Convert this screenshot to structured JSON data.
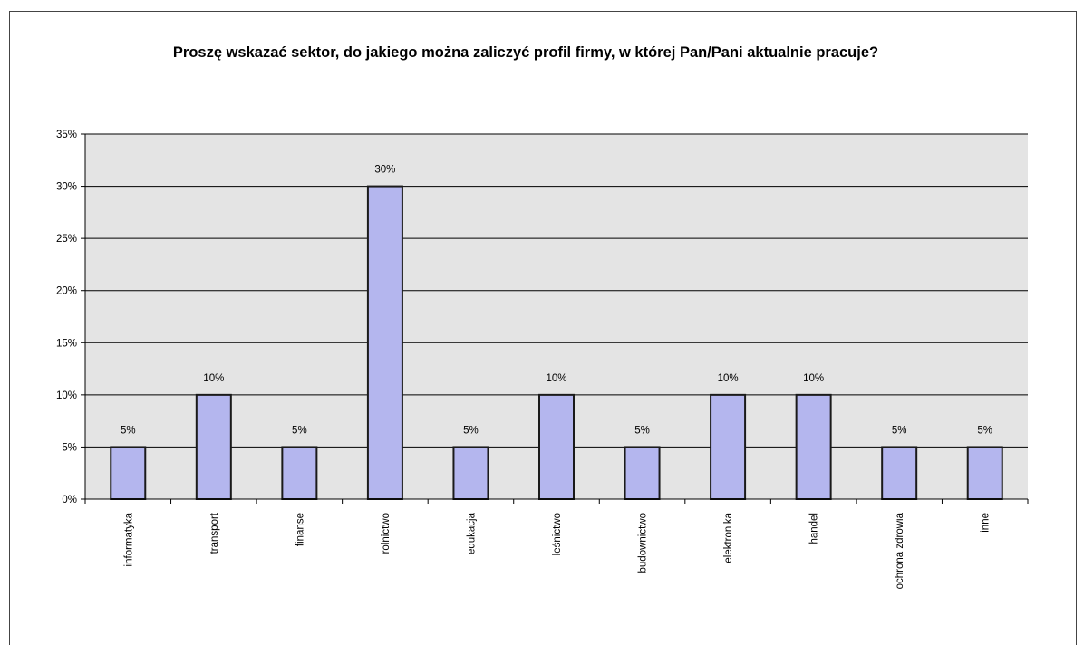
{
  "chart_data": {
    "type": "bar",
    "title": "Proszę wskazać sektor, do jakiego można zaliczyć profil firmy, w której Pan/Pani aktualnie pracuje?",
    "categories": [
      "informatyka",
      "transport",
      "finanse",
      "rolnictwo",
      "edukacja",
      "leśnictwo",
      "budownictwo",
      "elektronika",
      "handel",
      "ochrona zdrowia",
      "inne"
    ],
    "values": [
      5,
      10,
      5,
      30,
      5,
      10,
      5,
      10,
      10,
      5,
      5
    ],
    "data_labels": [
      "5%",
      "10%",
      "5%",
      "30%",
      "5%",
      "10%",
      "5%",
      "10%",
      "10%",
      "5%",
      "5%"
    ],
    "y_ticks": [
      "0%",
      "5%",
      "10%",
      "15%",
      "20%",
      "25%",
      "30%",
      "35%"
    ],
    "ylim": [
      0,
      35
    ],
    "y_unit": "%",
    "grid": true,
    "legend": "none",
    "colors": {
      "bar_fill": "#b4b6ee",
      "bar_stroke": "#1a1a1a",
      "plot_background": "#e4e4e4",
      "grid": "#000000"
    }
  }
}
